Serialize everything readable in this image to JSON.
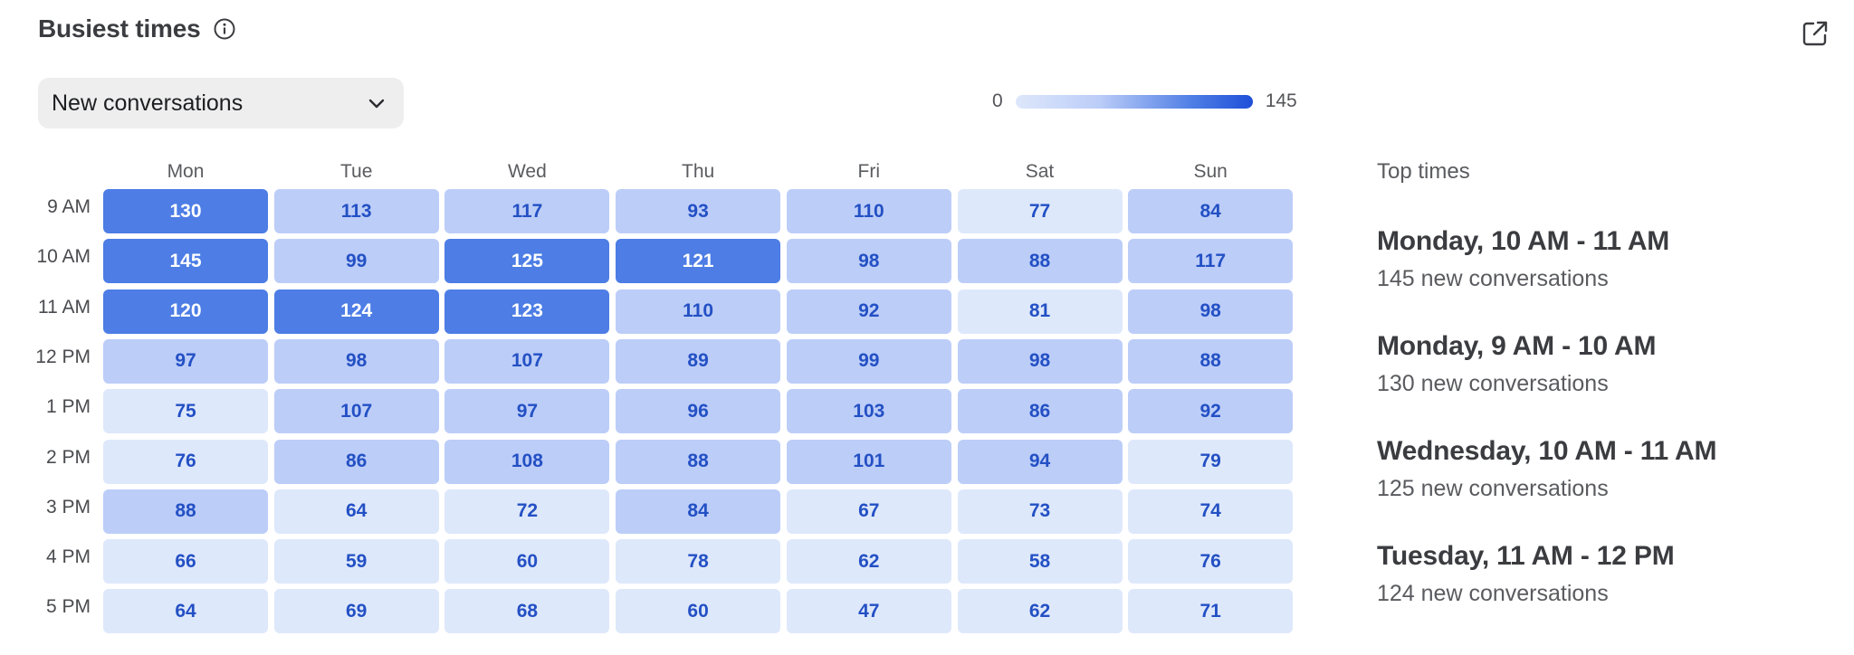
{
  "header": {
    "title": "Busiest times",
    "info_icon": "info-icon",
    "export_icon": "external-link-icon"
  },
  "metric_select": {
    "selected": "New conversations",
    "icon": "chevron-down-icon"
  },
  "legend": {
    "min": "0",
    "max": "145",
    "colors": [
      "#dde7fb",
      "#bccdf8",
      "#4d7de5",
      "#1f4fd8"
    ]
  },
  "heatmap": {
    "days": [
      "Mon",
      "Tue",
      "Wed",
      "Thu",
      "Fri",
      "Sat",
      "Sun"
    ],
    "hours": [
      "9 AM",
      "10 AM",
      "11 AM",
      "12 PM",
      "1 PM",
      "2 PM",
      "3 PM",
      "4 PM",
      "5 PM"
    ],
    "values": [
      [
        130,
        113,
        117,
        93,
        110,
        77,
        84
      ],
      [
        145,
        99,
        125,
        121,
        98,
        88,
        117
      ],
      [
        120,
        124,
        123,
        110,
        92,
        81,
        98
      ],
      [
        97,
        98,
        107,
        89,
        99,
        98,
        88
      ],
      [
        75,
        107,
        97,
        96,
        103,
        86,
        92
      ],
      [
        76,
        86,
        108,
        88,
        101,
        94,
        79
      ],
      [
        88,
        64,
        72,
        84,
        67,
        73,
        74
      ],
      [
        66,
        59,
        60,
        78,
        62,
        58,
        76
      ],
      [
        64,
        69,
        68,
        60,
        47,
        62,
        71
      ]
    ],
    "colors": {
      "high_bg": "#4d7de5",
      "high_text": "#ffffff",
      "mid_bg": "#bccdf8",
      "low_bg": "#dee8fb",
      "cell_text": "#2350c4"
    }
  },
  "top_times": {
    "title": "Top times",
    "items": [
      {
        "when": "Monday, 10 AM - 11 AM",
        "count": "145 new conversations"
      },
      {
        "when": "Monday, 9 AM - 10 AM",
        "count": "130 new conversations"
      },
      {
        "when": "Wednesday, 10 AM - 11 AM",
        "count": "125 new conversations"
      },
      {
        "when": "Tuesday, 11 AM - 12 PM",
        "count": "124 new conversations"
      }
    ]
  }
}
